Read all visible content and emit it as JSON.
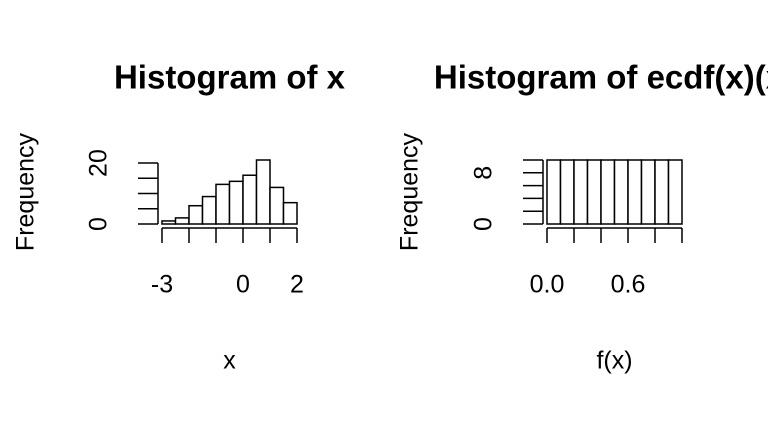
{
  "chart_data": [
    {
      "type": "histogram",
      "title": "Histogram of x",
      "xlabel": "x",
      "ylabel": "Frequency",
      "bins": [
        -3,
        -2.5,
        -2,
        -1.5,
        -1,
        -0.5,
        0,
        0.5,
        1,
        1.5,
        2
      ],
      "values": [
        1,
        2,
        6,
        9,
        13,
        14,
        16,
        21,
        12,
        7
      ],
      "xlim": [
        -3,
        2
      ],
      "xticks": [
        -3,
        0,
        2
      ],
      "xminor_ticks": [
        -2,
        -1,
        1
      ],
      "ylim": [
        0,
        21
      ],
      "yticks": [
        0,
        20
      ],
      "yminor_ticks": [
        5,
        10,
        15
      ]
    },
    {
      "type": "histogram",
      "title": "Histogram of ecdf(x)(x)",
      "xlabel": "f(x)",
      "ylabel": "Frequency",
      "bins": [
        0,
        0.1,
        0.2,
        0.3,
        0.4,
        0.5,
        0.6,
        0.7,
        0.8,
        0.9,
        1
      ],
      "values": [
        10,
        10,
        10,
        10,
        10,
        10,
        10,
        10,
        10,
        10
      ],
      "xlim": [
        0,
        1
      ],
      "xticks": [
        {
          "value": 0,
          "label": "0.0"
        },
        0.6
      ],
      "xminor_ticks": [
        0.2,
        0.4,
        0.8,
        1
      ],
      "ylim": [
        0,
        10
      ],
      "yticks": [
        0,
        8
      ],
      "yminor_ticks": [
        2,
        4,
        6,
        10
      ]
    }
  ]
}
